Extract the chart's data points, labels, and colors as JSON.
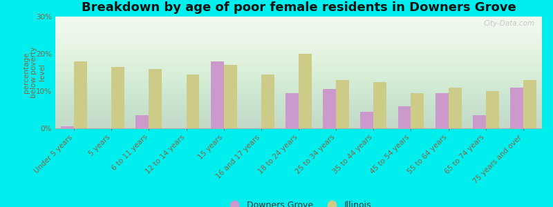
{
  "title": "Breakdown by age of poor female residents in Downers Grove",
  "ylabel": "percentage\nbelow poverty\nlevel",
  "categories": [
    "Under 5 years",
    "5 years",
    "6 to 11 years",
    "12 to 14 years",
    "15 years",
    "16 and 17 years",
    "18 to 24 years",
    "25 to 34 years",
    "35 to 44 years",
    "45 to 54 years",
    "55 to 64 years",
    "65 to 74 years",
    "75 years and over"
  ],
  "downers_grove": [
    0.5,
    0.0,
    3.5,
    0.0,
    18.0,
    0.0,
    9.5,
    10.5,
    4.5,
    6.0,
    9.5,
    3.5,
    11.0
  ],
  "illinois": [
    18.0,
    16.5,
    16.0,
    14.5,
    17.0,
    14.5,
    20.0,
    13.0,
    12.5,
    9.5,
    11.0,
    10.0,
    13.0
  ],
  "dg_color": "#cc99cc",
  "il_color": "#cccc88",
  "background_color": "#00eeee",
  "ylim": [
    0,
    30
  ],
  "yticks": [
    0,
    10,
    20,
    30
  ],
  "ytick_labels": [
    "0%",
    "10%",
    "20%",
    "30%"
  ],
  "bar_width": 0.35,
  "title_fontsize": 13,
  "axis_label_fontsize": 7.5,
  "tick_fontsize": 7.5,
  "legend_fontsize": 9,
  "watermark": "City-Data.com",
  "tick_color": "#886644",
  "label_color": "#886644"
}
